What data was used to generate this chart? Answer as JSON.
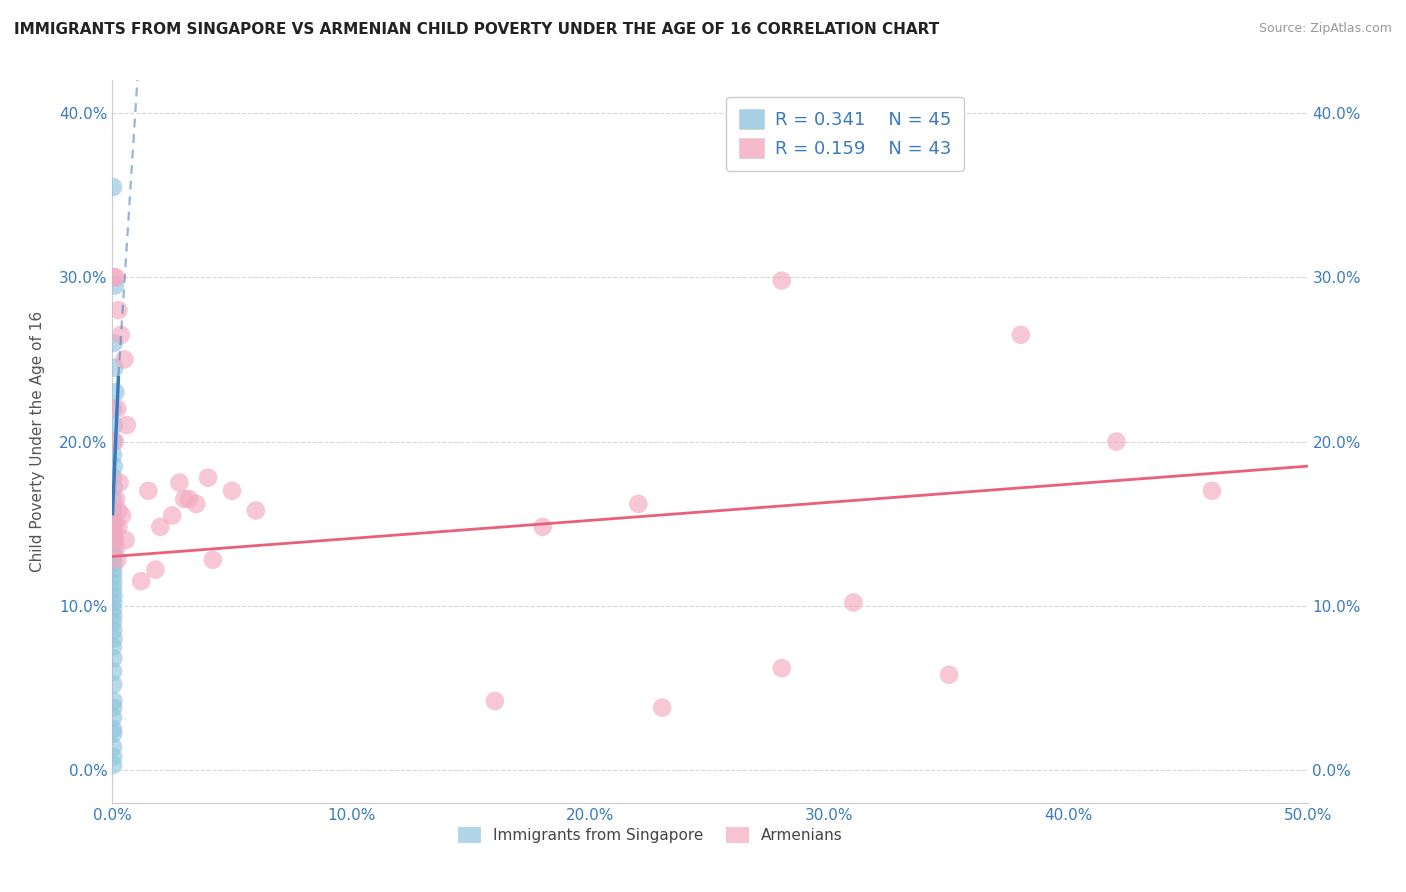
{
  "title": "IMMIGRANTS FROM SINGAPORE VS ARMENIAN CHILD POVERTY UNDER THE AGE OF 16 CORRELATION CHART",
  "source": "Source: ZipAtlas.com",
  "ylabel": "Child Poverty Under the Age of 16",
  "xlim": [
    0,
    0.5
  ],
  "ylim": [
    -0.02,
    0.42
  ],
  "legend_r1": "R = 0.341",
  "legend_n1": "N = 45",
  "legend_r2": "R = 0.159",
  "legend_n2": "N = 43",
  "blue_color": "#92c5de",
  "pink_color": "#f4a9c0",
  "blue_line_color": "#3a7bbf",
  "pink_line_color": "#e8607a",
  "scatter_blue": [
    [
      0.0002,
      0.355
    ],
    [
      0.001,
      0.295
    ],
    [
      0.0005,
      0.26
    ],
    [
      0.0008,
      0.245
    ],
    [
      0.0012,
      0.23
    ],
    [
      0.0003,
      0.22
    ],
    [
      0.0007,
      0.21
    ],
    [
      0.0004,
      0.2
    ],
    [
      0.0002,
      0.192
    ],
    [
      0.0006,
      0.185
    ],
    [
      0.0003,
      0.178
    ],
    [
      0.0005,
      0.172
    ],
    [
      0.0002,
      0.165
    ],
    [
      0.0004,
      0.16
    ],
    [
      0.0003,
      0.155
    ],
    [
      0.0002,
      0.15
    ],
    [
      0.0003,
      0.146
    ],
    [
      0.0005,
      0.142
    ],
    [
      0.0002,
      0.138
    ],
    [
      0.0003,
      0.134
    ],
    [
      0.0002,
      0.13
    ],
    [
      0.0004,
      0.126
    ],
    [
      0.0003,
      0.122
    ],
    [
      0.0002,
      0.118
    ],
    [
      0.0003,
      0.114
    ],
    [
      0.0002,
      0.11
    ],
    [
      0.0004,
      0.106
    ],
    [
      0.0003,
      0.102
    ],
    [
      0.0002,
      0.098
    ],
    [
      0.0003,
      0.094
    ],
    [
      0.0002,
      0.09
    ],
    [
      0.0003,
      0.085
    ],
    [
      0.0004,
      0.08
    ],
    [
      0.0002,
      0.075
    ],
    [
      0.0003,
      0.068
    ],
    [
      0.0002,
      0.06
    ],
    [
      0.0003,
      0.052
    ],
    [
      0.0004,
      0.042
    ],
    [
      0.0002,
      0.032
    ],
    [
      0.0003,
      0.022
    ],
    [
      0.0002,
      0.014
    ],
    [
      0.0003,
      0.008
    ],
    [
      0.0002,
      0.003
    ],
    [
      0.0002,
      0.025
    ],
    [
      0.0003,
      0.038
    ]
  ],
  "scatter_pink": [
    [
      0.0005,
      0.3
    ],
    [
      0.0015,
      0.3
    ],
    [
      0.0025,
      0.28
    ],
    [
      0.0035,
      0.265
    ],
    [
      0.005,
      0.25
    ],
    [
      0.002,
      0.22
    ],
    [
      0.001,
      0.2
    ],
    [
      0.003,
      0.175
    ],
    [
      0.006,
      0.21
    ],
    [
      0.0015,
      0.165
    ],
    [
      0.0025,
      0.158
    ],
    [
      0.001,
      0.15
    ],
    [
      0.0008,
      0.145
    ],
    [
      0.0012,
      0.14
    ],
    [
      0.004,
      0.155
    ],
    [
      0.0025,
      0.148
    ],
    [
      0.0055,
      0.14
    ],
    [
      0.0015,
      0.135
    ],
    [
      0.002,
      0.128
    ],
    [
      0.015,
      0.17
    ],
    [
      0.02,
      0.148
    ],
    [
      0.025,
      0.155
    ],
    [
      0.03,
      0.165
    ],
    [
      0.035,
      0.162
    ],
    [
      0.012,
      0.115
    ],
    [
      0.04,
      0.178
    ],
    [
      0.018,
      0.122
    ],
    [
      0.05,
      0.17
    ],
    [
      0.028,
      0.175
    ],
    [
      0.06,
      0.158
    ],
    [
      0.032,
      0.165
    ],
    [
      0.042,
      0.128
    ],
    [
      0.28,
      0.298
    ],
    [
      0.38,
      0.265
    ],
    [
      0.42,
      0.2
    ],
    [
      0.46,
      0.17
    ],
    [
      0.18,
      0.148
    ],
    [
      0.22,
      0.162
    ],
    [
      0.31,
      0.102
    ],
    [
      0.28,
      0.062
    ],
    [
      0.35,
      0.058
    ],
    [
      0.16,
      0.042
    ],
    [
      0.23,
      0.038
    ]
  ],
  "blue_solid_line": [
    [
      0.0,
      0.155
    ],
    [
      0.0025,
      0.24
    ]
  ],
  "blue_dashed_line": [
    [
      0.0025,
      0.24
    ],
    [
      0.035,
      0.98
    ]
  ],
  "pink_trendline": [
    [
      0.0,
      0.13
    ],
    [
      0.5,
      0.185
    ]
  ],
  "background_color": "#ffffff",
  "grid_color": "#d8d8d8"
}
